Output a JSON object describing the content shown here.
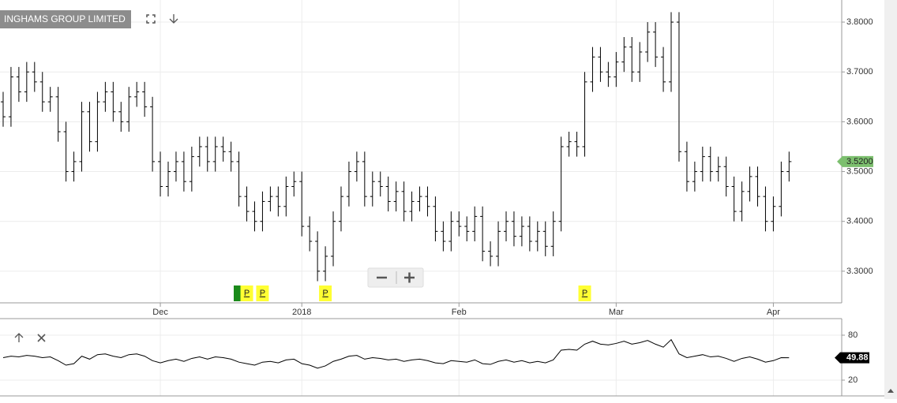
{
  "chart_data": [
    {
      "type": "ohlc",
      "title": "INGHAMS GROUP LIMITED",
      "color": "#000000",
      "open": [
        3.64,
        3.61,
        3.69,
        3.66,
        3.7,
        3.68,
        3.64,
        3.65,
        3.58,
        3.5,
        3.52,
        3.62,
        3.56,
        3.64,
        3.66,
        3.62,
        3.6,
        3.65,
        3.66,
        3.63,
        3.52,
        3.47,
        3.5,
        3.52,
        3.48,
        3.53,
        3.55,
        3.52,
        3.55,
        3.54,
        3.52,
        3.45,
        3.42,
        3.4,
        3.44,
        3.45,
        3.43,
        3.47,
        3.48,
        3.39,
        3.36,
        3.3,
        3.33,
        3.4,
        3.45,
        3.5,
        3.52,
        3.45,
        3.48,
        3.47,
        3.44,
        3.46,
        3.42,
        3.44,
        3.45,
        3.43,
        3.38,
        3.36,
        3.4,
        3.39,
        3.38,
        3.41,
        3.34,
        3.33,
        3.38,
        3.4,
        3.37,
        3.39,
        3.36,
        3.38,
        3.35,
        3.4,
        3.55,
        3.56,
        3.55,
        3.68,
        3.73,
        3.7,
        3.69,
        3.72,
        3.75,
        3.7,
        3.74,
        3.78,
        3.73,
        3.68,
        3.8,
        3.54,
        3.48,
        3.5,
        3.53,
        3.5,
        3.51,
        3.47,
        3.42,
        3.46,
        3.49,
        3.45,
        3.4,
        3.43,
        3.5
      ],
      "high": [
        3.66,
        3.71,
        3.71,
        3.72,
        3.72,
        3.7,
        3.67,
        3.67,
        3.6,
        3.54,
        3.64,
        3.64,
        3.66,
        3.68,
        3.68,
        3.64,
        3.67,
        3.68,
        3.68,
        3.65,
        3.54,
        3.52,
        3.54,
        3.54,
        3.55,
        3.57,
        3.57,
        3.57,
        3.57,
        3.56,
        3.54,
        3.47,
        3.44,
        3.46,
        3.47,
        3.47,
        3.49,
        3.5,
        3.5,
        3.41,
        3.38,
        3.35,
        3.42,
        3.47,
        3.52,
        3.54,
        3.54,
        3.5,
        3.5,
        3.49,
        3.48,
        3.48,
        3.46,
        3.47,
        3.47,
        3.45,
        3.4,
        3.42,
        3.42,
        3.41,
        3.43,
        3.43,
        3.36,
        3.4,
        3.42,
        3.42,
        3.41,
        3.41,
        3.4,
        3.4,
        3.42,
        3.57,
        3.58,
        3.58,
        3.7,
        3.75,
        3.75,
        3.72,
        3.74,
        3.77,
        3.77,
        3.76,
        3.8,
        3.8,
        3.75,
        3.82,
        3.82,
        3.56,
        3.52,
        3.55,
        3.55,
        3.53,
        3.53,
        3.49,
        3.48,
        3.51,
        3.51,
        3.47,
        3.45,
        3.52,
        3.54
      ],
      "low": [
        3.59,
        3.59,
        3.64,
        3.64,
        3.66,
        3.62,
        3.62,
        3.56,
        3.48,
        3.48,
        3.5,
        3.54,
        3.54,
        3.62,
        3.6,
        3.58,
        3.58,
        3.63,
        3.61,
        3.5,
        3.45,
        3.45,
        3.48,
        3.46,
        3.46,
        3.51,
        3.5,
        3.5,
        3.52,
        3.5,
        3.43,
        3.4,
        3.38,
        3.38,
        3.42,
        3.41,
        3.41,
        3.45,
        3.37,
        3.34,
        3.28,
        3.28,
        3.31,
        3.38,
        3.43,
        3.48,
        3.43,
        3.43,
        3.45,
        3.42,
        3.42,
        3.4,
        3.4,
        3.42,
        3.41,
        3.36,
        3.34,
        3.34,
        3.37,
        3.36,
        3.36,
        3.32,
        3.31,
        3.31,
        3.36,
        3.35,
        3.35,
        3.34,
        3.34,
        3.33,
        3.33,
        3.38,
        3.53,
        3.53,
        3.53,
        3.66,
        3.68,
        3.67,
        3.67,
        3.7,
        3.68,
        3.68,
        3.72,
        3.71,
        3.66,
        3.66,
        3.52,
        3.46,
        3.46,
        3.48,
        3.48,
        3.48,
        3.45,
        3.4,
        3.4,
        3.44,
        3.43,
        3.38,
        3.38,
        3.41,
        3.48
      ],
      "close": [
        3.61,
        3.69,
        3.66,
        3.7,
        3.68,
        3.64,
        3.65,
        3.58,
        3.5,
        3.52,
        3.62,
        3.56,
        3.64,
        3.66,
        3.62,
        3.6,
        3.65,
        3.66,
        3.63,
        3.52,
        3.47,
        3.5,
        3.52,
        3.48,
        3.53,
        3.55,
        3.52,
        3.55,
        3.54,
        3.52,
        3.45,
        3.42,
        3.4,
        3.44,
        3.45,
        3.43,
        3.47,
        3.48,
        3.39,
        3.36,
        3.3,
        3.33,
        3.4,
        3.45,
        3.5,
        3.52,
        3.45,
        3.48,
        3.47,
        3.44,
        3.46,
        3.42,
        3.44,
        3.45,
        3.43,
        3.38,
        3.36,
        3.4,
        3.39,
        3.38,
        3.41,
        3.34,
        3.33,
        3.38,
        3.4,
        3.37,
        3.39,
        3.36,
        3.38,
        3.35,
        3.4,
        3.55,
        3.56,
        3.55,
        3.68,
        3.73,
        3.7,
        3.69,
        3.72,
        3.75,
        3.7,
        3.74,
        3.78,
        3.73,
        3.68,
        3.8,
        3.54,
        3.48,
        3.5,
        3.53,
        3.5,
        3.51,
        3.47,
        3.42,
        3.46,
        3.49,
        3.45,
        3.4,
        3.43,
        3.5,
        3.52
      ],
      "last_label": "3.5200",
      "last_color": "#7cbf6e",
      "xlim": [
        -0.4,
        106.7
      ],
      "xticks": [
        {
          "value": 20,
          "label": "Dec"
        },
        {
          "value": 38,
          "label": "2018"
        },
        {
          "value": 58,
          "label": "Feb"
        },
        {
          "value": 78,
          "label": "Mar"
        },
        {
          "value": 98,
          "label": "Apr"
        }
      ],
      "ylim": [
        3.2365,
        3.8444
      ],
      "yticks": [
        {
          "value": 3.3,
          "label": "3.3000"
        },
        {
          "value": 3.4,
          "label": "3.4000"
        },
        {
          "value": 3.5,
          "label": "3.5000"
        },
        {
          "value": 3.6,
          "label": "3.6000"
        },
        {
          "value": 3.7,
          "label": "3.7000"
        },
        {
          "value": 3.8,
          "label": "3.8000"
        }
      ],
      "markers": [
        {
          "x": 31,
          "label": "P"
        },
        {
          "x": 33,
          "label": "P"
        },
        {
          "x": 41,
          "label": "P"
        },
        {
          "x": 74,
          "label": "P"
        }
      ],
      "grid": true
    },
    {
      "type": "line",
      "color": "#000000",
      "tag_color": "#000000",
      "values": [
        50,
        52,
        51,
        53,
        52,
        50,
        51,
        46,
        40,
        42,
        52,
        48,
        54,
        55,
        52,
        50,
        54,
        55,
        52,
        46,
        43,
        46,
        48,
        45,
        49,
        51,
        48,
        51,
        50,
        48,
        44,
        42,
        40,
        44,
        45,
        43,
        47,
        48,
        42,
        40,
        36,
        39,
        45,
        48,
        52,
        53,
        48,
        50,
        49,
        47,
        48,
        45,
        47,
        48,
        46,
        43,
        42,
        46,
        45,
        44,
        47,
        42,
        41,
        45,
        47,
        44,
        46,
        43,
        45,
        43,
        47,
        60,
        61,
        60,
        68,
        72,
        68,
        67,
        69,
        72,
        68,
        70,
        73,
        68,
        64,
        74,
        55,
        50,
        52,
        54,
        51,
        52,
        49,
        45,
        49,
        51,
        48,
        44,
        46,
        50,
        49.88
      ],
      "ylim": [
        -1.05,
        102.1
      ],
      "yticks": [
        20,
        80
      ],
      "grid": true
    }
  ]
}
